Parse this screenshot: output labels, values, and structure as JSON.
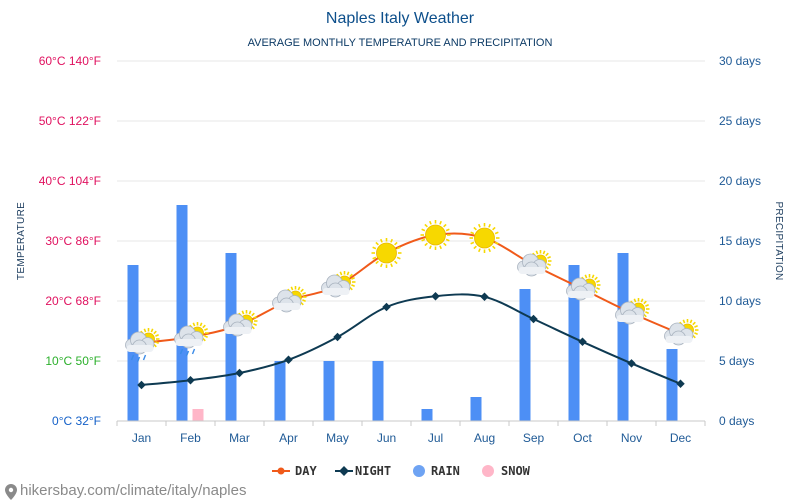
{
  "title": "Naples Italy Weather",
  "subtitle": "AVERAGE MONTHLY TEMPERATURE AND PRECIPITATION",
  "source": "hikersbay.com/climate/italy/naples",
  "colors": {
    "day": "#f05a1a",
    "night": "#0e3a52",
    "rain": "#4d8ff5",
    "snow": "#ffb6c8",
    "title": "#0d4f8b",
    "tick_hot": "#e0115f",
    "tick_mild": "#2cb02c",
    "tick_cold": "#1460c8",
    "right_axis": "#1f5a96",
    "sun": "#f7d800"
  },
  "chart_data": {
    "type": "line+bar",
    "title": "Naples Italy Weather",
    "subtitle": "AVERAGE MONTHLY TEMPERATURE AND PRECIPITATION",
    "categories": [
      "Jan",
      "Feb",
      "Mar",
      "Apr",
      "May",
      "Jun",
      "Jul",
      "Aug",
      "Sep",
      "Oct",
      "Nov",
      "Dec"
    ],
    "y_left": {
      "label": "TEMPERATURE",
      "unit": "°C",
      "range": [
        0,
        60
      ],
      "ticks": [
        {
          "value": 0,
          "label": "0°C 32°F",
          "class": "cold"
        },
        {
          "value": 10,
          "label": "10°C 50°F",
          "class": "mild"
        },
        {
          "value": 20,
          "label": "20°C 68°F",
          "class": "hot"
        },
        {
          "value": 30,
          "label": "30°C 86°F",
          "class": "hot"
        },
        {
          "value": 40,
          "label": "40°C 104°F",
          "class": "hot"
        },
        {
          "value": 50,
          "label": "50°C 122°F",
          "class": "hot"
        },
        {
          "value": 60,
          "label": "60°C 140°F",
          "class": "hot"
        }
      ]
    },
    "y_right": {
      "label": "PRECIPITATION",
      "range": [
        0,
        30
      ],
      "ticks": [
        {
          "value": 0,
          "label": "0 days"
        },
        {
          "value": 5,
          "label": "5 days"
        },
        {
          "value": 10,
          "label": "10 days"
        },
        {
          "value": 15,
          "label": "15 days"
        },
        {
          "value": 20,
          "label": "20 days"
        },
        {
          "value": 25,
          "label": "25 days"
        },
        {
          "value": 30,
          "label": "30 days"
        }
      ]
    },
    "grid": true,
    "legend_position": "bottom-center",
    "legend": [
      "DAY",
      "NIGHT",
      "RAIN",
      "SNOW"
    ],
    "series": [
      {
        "name": "DAY",
        "type": "line",
        "axis": "left",
        "values": [
          13,
          14,
          16,
          20,
          22.5,
          28,
          31,
          30.5,
          26,
          22,
          18,
          14.5
        ]
      },
      {
        "name": "NIGHT",
        "type": "line",
        "axis": "left",
        "values": [
          6,
          6.8,
          8,
          10.2,
          14,
          19,
          20.8,
          20.7,
          17,
          13.2,
          9.6,
          6.2
        ]
      },
      {
        "name": "RAIN",
        "type": "bar",
        "axis": "right",
        "values": [
          13,
          18,
          14,
          5,
          5,
          5,
          1,
          2,
          11,
          13,
          14,
          6
        ]
      },
      {
        "name": "SNOW",
        "type": "bar",
        "axis": "right",
        "values": [
          0,
          1,
          0,
          0,
          0,
          0,
          0,
          0,
          0,
          0,
          0,
          0
        ]
      }
    ],
    "weather_icons": [
      "cloud-sun-rain",
      "cloud-sun-rain",
      "cloud-sun",
      "cloud-sun",
      "cloud-sun",
      "sun",
      "sun",
      "sun",
      "cloud-sun",
      "cloud-sun",
      "cloud-sun",
      "cloud-sun"
    ]
  }
}
